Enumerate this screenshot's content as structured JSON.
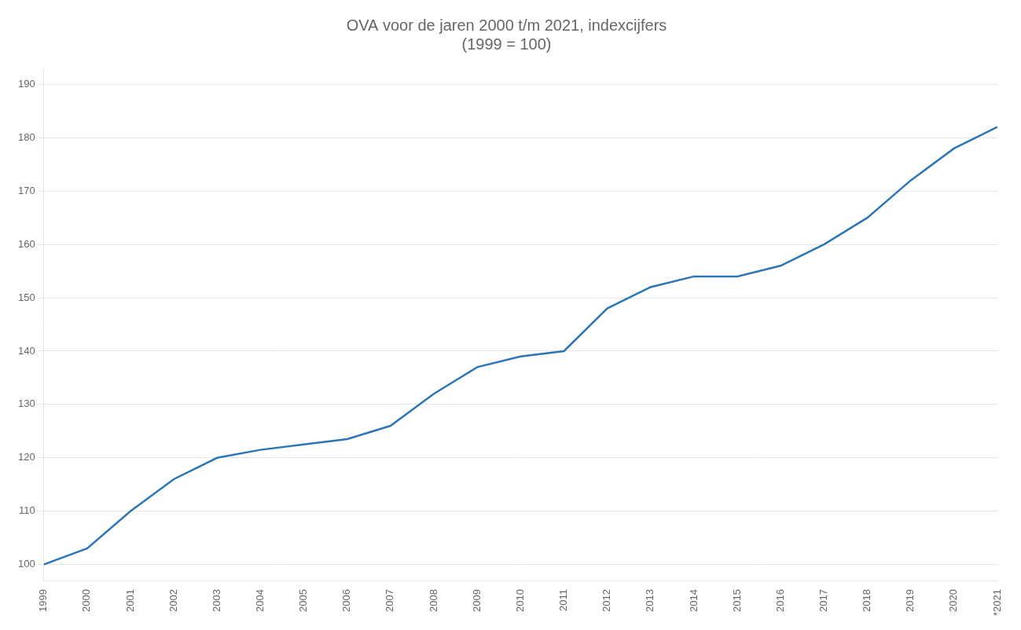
{
  "chart_data": {
    "type": "line",
    "title": "OVA voor de jaren 2000 t/m 2021, indexcijfers\n(1999 = 100)",
    "categories": [
      "1999",
      "2000",
      "2001",
      "2002",
      "2003",
      "2004",
      "2005",
      "2006",
      "2007",
      "2008",
      "2009",
      "2010",
      "2011",
      "2012",
      "2013",
      "2014",
      "2015",
      "2016",
      "2017",
      "2018",
      "2019",
      "2020",
      "*2021"
    ],
    "values": [
      100,
      103,
      110,
      116,
      120,
      121.5,
      122.5,
      123.5,
      126,
      132,
      137,
      139,
      140,
      148,
      152,
      154,
      154,
      156,
      160,
      165,
      172,
      178,
      182
    ],
    "color": "#2E75B6",
    "ylim": [
      97,
      193
    ],
    "yticks": [
      100,
      110,
      120,
      130,
      140,
      150,
      160,
      170,
      180,
      190
    ],
    "grid": true
  }
}
